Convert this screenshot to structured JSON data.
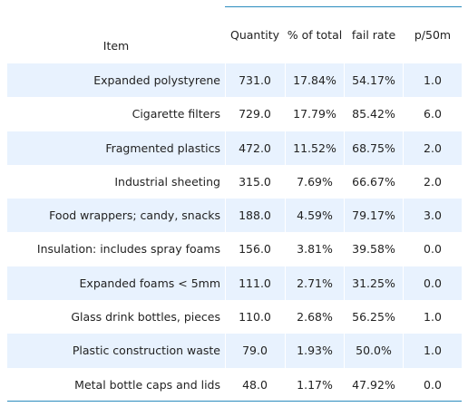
{
  "chart_data": {
    "type": "table",
    "columns": [
      "Item",
      "Quantity",
      "% of total",
      "fail rate",
      "p/50m"
    ],
    "rows": [
      {
        "item": "Expanded polystyrene",
        "quantity": "731.0",
        "pct_total": "17.84%",
        "fail_rate": "54.17%",
        "p50m": "1.0"
      },
      {
        "item": "Cigarette filters",
        "quantity": "729.0",
        "pct_total": "17.79%",
        "fail_rate": "85.42%",
        "p50m": "6.0"
      },
      {
        "item": "Fragmented plastics",
        "quantity": "472.0",
        "pct_total": "11.52%",
        "fail_rate": "68.75%",
        "p50m": "2.0"
      },
      {
        "item": "Industrial sheeting",
        "quantity": "315.0",
        "pct_total": "7.69%",
        "fail_rate": "66.67%",
        "p50m": "2.0"
      },
      {
        "item": "Food wrappers; candy, snacks",
        "quantity": "188.0",
        "pct_total": "4.59%",
        "fail_rate": "79.17%",
        "p50m": "3.0"
      },
      {
        "item": "Insulation: includes spray foams",
        "quantity": "156.0",
        "pct_total": "3.81%",
        "fail_rate": "39.58%",
        "p50m": "0.0"
      },
      {
        "item": "Expanded foams < 5mm",
        "quantity": "111.0",
        "pct_total": "2.71%",
        "fail_rate": "31.25%",
        "p50m": "0.0"
      },
      {
        "item": "Glass drink bottles, pieces",
        "quantity": "110.0",
        "pct_total": "2.68%",
        "fail_rate": "56.25%",
        "p50m": "1.0"
      },
      {
        "item": "Plastic construction waste",
        "quantity": "79.0",
        "pct_total": "1.93%",
        "fail_rate": "50.0%",
        "p50m": "1.0"
      },
      {
        "item": "Metal bottle caps and lids",
        "quantity": "48.0",
        "pct_total": "1.17%",
        "fail_rate": "47.92%",
        "p50m": "0.0"
      }
    ]
  },
  "colors": {
    "row_shade": "#e8f2fe",
    "rule_line": "#2b8cbe",
    "text": "#222222"
  }
}
